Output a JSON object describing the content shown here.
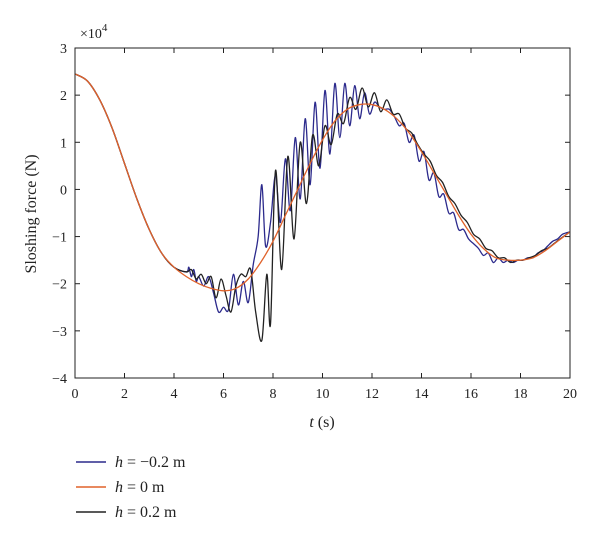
{
  "chart_data": {
    "type": "line",
    "title": "",
    "xlabel": "t (s)",
    "xlabel_var": "t",
    "xlabel_unit": " (s)",
    "ylabel": "Sloshing force (N)",
    "y_multiplier": "×10",
    "y_multiplier_exp": "4",
    "xlim": [
      0,
      20
    ],
    "ylim": [
      -4,
      3
    ],
    "xticks": [
      0,
      2,
      4,
      6,
      8,
      10,
      12,
      14,
      16,
      18,
      20
    ],
    "yticks": [
      -4,
      -3,
      -2,
      -1,
      0,
      1,
      2,
      3
    ],
    "grid": false,
    "legend_position": "bottom-left outside",
    "series": [
      {
        "name": "h = −0.2 m",
        "legend_var": "h",
        "legend_rest": " = −0.2 m",
        "color": "#2c2a8c",
        "x": [
          0,
          0.5,
          1,
          1.5,
          2,
          2.5,
          3,
          3.5,
          4,
          4.5,
          4.6,
          4.7,
          4.8,
          4.9,
          5,
          5.2,
          5.4,
          5.6,
          5.8,
          6,
          6.2,
          6.4,
          6.6,
          6.8,
          7,
          7.2,
          7.4,
          7.55,
          7.7,
          7.9,
          8.1,
          8.3,
          8.5,
          8.7,
          8.9,
          9.1,
          9.3,
          9.5,
          9.7,
          9.9,
          10.1,
          10.3,
          10.5,
          10.7,
          10.9,
          11.1,
          11.3,
          11.5,
          11.7,
          11.9,
          12.1,
          12.3,
          12.5,
          12.7,
          12.9,
          13.1,
          13.3,
          13.5,
          13.7,
          13.9,
          14.1,
          14.3,
          14.5,
          14.7,
          14.9,
          15.1,
          15.3,
          15.5,
          15.7,
          15.9,
          16.1,
          16.3,
          16.5,
          16.7,
          16.9,
          17.1,
          17.3,
          17.5,
          17.7,
          17.9,
          18.1,
          18.3,
          18.5,
          18.7,
          18.9,
          19.1,
          19.3,
          19.5,
          19.7,
          20
        ],
        "y": [
          2.45,
          2.3,
          1.9,
          1.3,
          0.55,
          -0.2,
          -0.85,
          -1.35,
          -1.65,
          -1.75,
          -1.65,
          -1.85,
          -1.7,
          -1.95,
          -1.85,
          -2.05,
          -1.85,
          -2.2,
          -2.6,
          -2.5,
          -2.55,
          -1.8,
          -2.45,
          -1.95,
          -2.4,
          -1.6,
          -1.0,
          0.1,
          -1.2,
          -0.7,
          0.3,
          -0.7,
          0.65,
          -0.45,
          1.1,
          -0.2,
          1.5,
          0.1,
          1.85,
          0.45,
          2.1,
          0.75,
          2.25,
          1.1,
          2.25,
          1.35,
          2.2,
          1.5,
          2.05,
          1.6,
          1.85,
          1.75,
          1.7,
          1.7,
          1.55,
          1.35,
          1.4,
          1.0,
          1.15,
          0.6,
          0.8,
          0.2,
          0.35,
          -0.15,
          -0.1,
          -0.5,
          -0.5,
          -0.85,
          -0.85,
          -1.05,
          -1.15,
          -1.25,
          -1.4,
          -1.35,
          -1.55,
          -1.45,
          -1.55,
          -1.5,
          -1.55,
          -1.5,
          -1.5,
          -1.45,
          -1.45,
          -1.35,
          -1.3,
          -1.2,
          -1.1,
          -1.05,
          -0.95,
          -0.9
        ]
      },
      {
        "name": "h = 0 m",
        "legend_var": "h",
        "legend_rest": " = 0 m",
        "color": "#e0622a",
        "x": [
          0,
          0.5,
          1,
          1.5,
          2,
          2.5,
          3,
          3.5,
          4,
          4.5,
          5,
          5.5,
          6,
          6.5,
          7,
          7.5,
          8,
          8.5,
          9,
          9.5,
          10,
          10.5,
          11,
          11.5,
          12,
          12.5,
          13,
          13.5,
          14,
          14.5,
          15,
          15.5,
          16,
          16.5,
          17,
          17.5,
          18,
          18.5,
          19,
          19.5,
          20
        ],
        "y": [
          2.45,
          2.3,
          1.9,
          1.3,
          0.55,
          -0.2,
          -0.85,
          -1.35,
          -1.65,
          -1.85,
          -2.0,
          -2.1,
          -2.15,
          -2.1,
          -1.9,
          -1.55,
          -1.1,
          -0.55,
          0.0,
          0.55,
          1.05,
          1.45,
          1.7,
          1.8,
          1.8,
          1.7,
          1.5,
          1.2,
          0.8,
          0.35,
          -0.1,
          -0.55,
          -0.95,
          -1.25,
          -1.45,
          -1.5,
          -1.5,
          -1.45,
          -1.3,
          -1.1,
          -0.9
        ]
      },
      {
        "name": "h = 0.2 m",
        "legend_var": "h",
        "legend_rest": " = 0.2 m",
        "color": "#222222",
        "x": [
          0,
          0.5,
          1,
          1.5,
          2,
          2.5,
          3,
          3.5,
          4,
          4.5,
          4.7,
          4.9,
          5.1,
          5.3,
          5.5,
          5.7,
          5.9,
          6.1,
          6.3,
          6.5,
          6.7,
          6.9,
          7.1,
          7.3,
          7.55,
          7.75,
          7.9,
          8.1,
          8.35,
          8.6,
          8.85,
          9.1,
          9.35,
          9.6,
          9.85,
          10.1,
          10.35,
          10.6,
          10.85,
          11.1,
          11.35,
          11.6,
          11.85,
          12.1,
          12.35,
          12.6,
          12.85,
          13.1,
          13.35,
          13.6,
          13.85,
          14.1,
          14.35,
          14.6,
          14.85,
          15.1,
          15.35,
          15.6,
          15.85,
          16.1,
          16.35,
          16.6,
          16.85,
          17.1,
          17.35,
          17.6,
          17.85,
          18.1,
          18.35,
          18.6,
          18.85,
          19.1,
          19.35,
          19.6,
          20
        ],
        "y": [
          2.45,
          2.3,
          1.9,
          1.3,
          0.55,
          -0.2,
          -0.85,
          -1.35,
          -1.65,
          -1.75,
          -1.7,
          -1.9,
          -1.8,
          -2.0,
          -1.85,
          -2.3,
          -1.9,
          -2.25,
          -2.6,
          -2.05,
          -1.8,
          -1.85,
          -1.7,
          -2.6,
          -3.2,
          -1.8,
          -2.85,
          0.4,
          -1.7,
          0.7,
          -1.05,
          1.0,
          -0.3,
          1.15,
          0.5,
          1.35,
          0.95,
          1.6,
          1.4,
          1.95,
          1.7,
          2.15,
          1.75,
          2.05,
          1.65,
          1.9,
          1.6,
          1.6,
          1.3,
          1.2,
          0.95,
          0.75,
          0.6,
          0.3,
          0.15,
          -0.15,
          -0.3,
          -0.55,
          -0.7,
          -0.95,
          -1.05,
          -1.25,
          -1.3,
          -1.45,
          -1.45,
          -1.55,
          -1.5,
          -1.5,
          -1.45,
          -1.4,
          -1.3,
          -1.25,
          -1.15,
          -1.05,
          -0.9
        ]
      }
    ]
  }
}
